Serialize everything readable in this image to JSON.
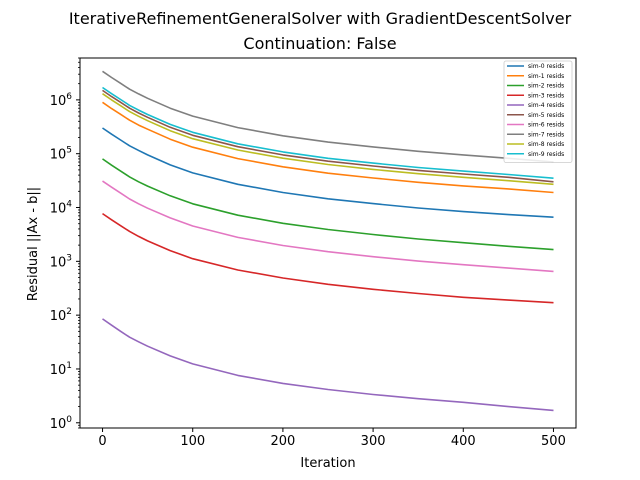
{
  "chart_data": {
    "type": "line",
    "title": "IterativeRefinementGeneralSolver with GradientDescentSolver",
    "subtitle": "Continuation: False",
    "xlabel": "Iteration",
    "ylabel": "Residual ||Ax - b||",
    "xlim": [
      -25,
      525
    ],
    "ylim": [
      0.8,
      6000000
    ],
    "y_scale": "log",
    "grid": false,
    "legend_position": "top-right",
    "x_ticks": [
      0,
      100,
      200,
      300,
      400,
      500
    ],
    "x_tick_labels": [
      "0",
      "100",
      "200",
      "300",
      "400",
      "500"
    ],
    "y_ticks": [
      1,
      10,
      100,
      1000,
      10000,
      100000,
      1000000
    ],
    "y_tick_labels": [
      {
        "base": "10",
        "exp": "0"
      },
      {
        "base": "10",
        "exp": "1"
      },
      {
        "base": "10",
        "exp": "2"
      },
      {
        "base": "10",
        "exp": "3"
      },
      {
        "base": "10",
        "exp": "4"
      },
      {
        "base": "10",
        "exp": "5"
      },
      {
        "base": "10",
        "exp": "6"
      }
    ],
    "x": [
      0,
      10,
      20,
      30,
      40,
      50,
      75,
      100,
      150,
      200,
      250,
      300,
      350,
      400,
      450,
      500
    ],
    "series": [
      {
        "name": "sim-0 resids",
        "color": "#1f77b4",
        "values": [
          300000,
          230000,
          180000,
          140000,
          115000,
          95000,
          62000,
          44000,
          27000,
          19000,
          14500,
          11800,
          9800,
          8400,
          7400,
          6600
        ]
      },
      {
        "name": "sim-1 resids",
        "color": "#ff7f0e",
        "values": [
          900000,
          690000,
          540000,
          420000,
          340000,
          285000,
          186000,
          132000,
          81000,
          57000,
          43500,
          35400,
          29400,
          25200,
          22200,
          19000
        ]
      },
      {
        "name": "sim-2 resids",
        "color": "#2ca02c",
        "values": [
          80000,
          61000,
          47500,
          37000,
          30000,
          25000,
          16500,
          11700,
          7200,
          5100,
          3900,
          3150,
          2600,
          2220,
          1900,
          1650
        ]
      },
      {
        "name": "sim-3 resids",
        "color": "#d62728",
        "values": [
          7700,
          5900,
          4600,
          3600,
          2900,
          2400,
          1580,
          1120,
          690,
          490,
          375,
          302,
          252,
          215,
          190,
          170
        ]
      },
      {
        "name": "sim-4 resids",
        "color": "#9467bd",
        "values": [
          85,
          65,
          50,
          39,
          32,
          26.5,
          17.5,
          12.4,
          7.6,
          5.4,
          4.15,
          3.35,
          2.8,
          2.4,
          2.0,
          1.7
        ]
      },
      {
        "name": "sim-5 resids",
        "color": "#8c564b",
        "values": [
          1500000,
          1150000,
          900000,
          700000,
          570000,
          475000,
          310000,
          220000,
          135000,
          95000,
          72500,
          59000,
          49000,
          42000,
          36500,
          30000
        ]
      },
      {
        "name": "sim-6 resids",
        "color": "#e377c2",
        "values": [
          31000,
          23800,
          18500,
          14400,
          11700,
          9700,
          6400,
          4540,
          2790,
          1970,
          1510,
          1220,
          1010,
          865,
          750,
          650
        ]
      },
      {
        "name": "sim-7 resids",
        "color": "#7f7f7f",
        "values": [
          3400000,
          2600000,
          2030000,
          1580000,
          1290000,
          1070000,
          700000,
          500000,
          305000,
          215000,
          164000,
          134000,
          111000,
          95000,
          82000,
          70000
        ]
      },
      {
        "name": "sim-8 resids",
        "color": "#bcbd22",
        "values": [
          1300000,
          1000000,
          780000,
          605000,
          495000,
          410000,
          268000,
          190000,
          117000,
          82500,
          63000,
          51000,
          42500,
          36500,
          31500,
          27000
        ]
      },
      {
        "name": "sim-9 resids",
        "color": "#17becf",
        "values": [
          1700000,
          1300000,
          1015000,
          790000,
          645000,
          535000,
          350000,
          250000,
          153000,
          108000,
          82000,
          67000,
          55500,
          47500,
          41000,
          35000
        ]
      }
    ]
  }
}
